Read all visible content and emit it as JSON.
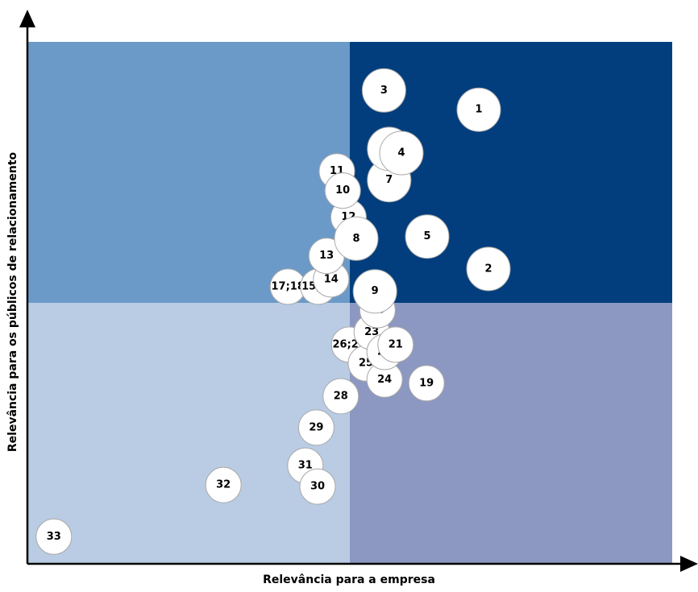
{
  "chart_data": {
    "type": "scatter",
    "x_label": "Relevância para a empresa",
    "y_label": "Relevância para os públicos de relacionamento",
    "labels": [
      "1",
      "2",
      "3",
      "4",
      "5",
      "6",
      "7",
      "8",
      "9",
      "10",
      "11",
      "12",
      "13",
      "14",
      "15;16",
      "17;18",
      "19",
      "20",
      "21",
      "22",
      "23",
      "24",
      "25",
      "26;27",
      "28",
      "29",
      "30",
      "31",
      "32",
      "33"
    ],
    "x": [
      70,
      71.5,
      55.3,
      58,
      62,
      56.1,
      56.1,
      51,
      53.9,
      48.9,
      48,
      49.8,
      46.4,
      47.1,
      45.1,
      40.4,
      61.9,
      54.3,
      57.1,
      55.4,
      53.4,
      55.4,
      52.5,
      49.9,
      48.6,
      44.8,
      45,
      43.1,
      30.4,
      4.1
    ],
    "y": [
      87,
      56.5,
      90.7,
      78.7,
      62.7,
      79.5,
      73.5,
      62.3,
      52.2,
      71.5,
      75.2,
      66.4,
      59,
      54.5,
      53.1,
      53.1,
      34.6,
      48.6,
      42,
      40.6,
      44.4,
      35.3,
      38.4,
      42,
      32.1,
      26.1,
      14.8,
      18.8,
      15.1,
      5.2
    ],
    "xlim": [
      0,
      100
    ],
    "ylim": [
      0,
      100
    ],
    "quadrant_split": [
      50,
      50
    ],
    "quadrant_colors": {
      "top_left": "#6b9ac8",
      "top_right": "#023e7d",
      "bottom_left": "#b9cce4",
      "bottom_right": "#8c98c2"
    },
    "color": "#ffffff"
  }
}
